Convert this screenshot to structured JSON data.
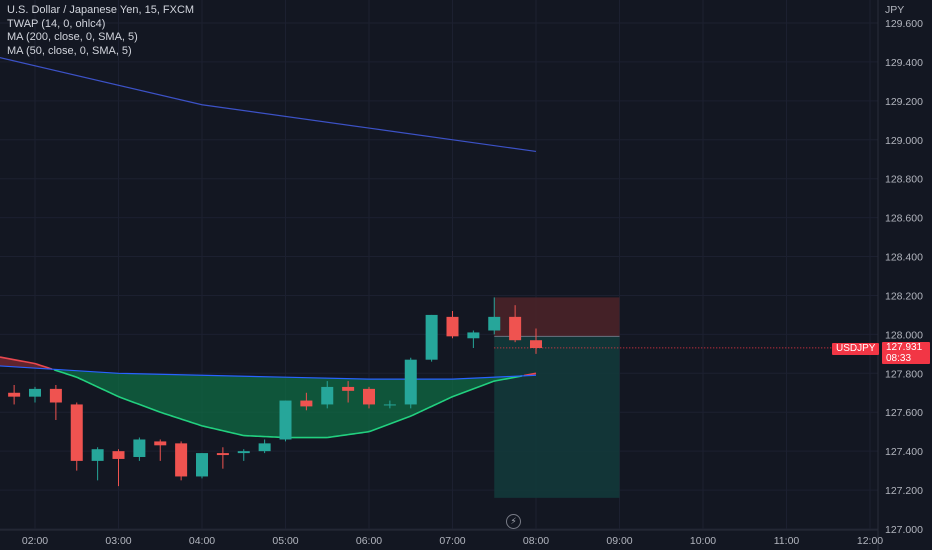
{
  "legend": {
    "symbol": "U.S. Dollar / Japanese Yen, 15, FXCM",
    "twap": "TWAP (14, 0, ohlc4)",
    "ma200": "MA (200, close, 0, SMA, 5)",
    "ma50": "MA (50, close, 0, SMA, 5)"
  },
  "price_tag": {
    "symbol": "USDJPY",
    "price": "127.931",
    "countdown": "08:33"
  },
  "icons": {
    "replay": "lightning-icon"
  },
  "colors": {
    "background": "#131722",
    "up": "#26a69a",
    "down": "#ef5350",
    "ma200": "#3c52c7",
    "ma50": "#2962ff",
    "twap_line_up": "#22d07f",
    "twap_line_down": "#e8474f",
    "twap_fill_up": "#0f6b43",
    "twap_fill_down": "#7a2a33",
    "stop_zone": "#4a2228",
    "target_zone": "#13393a"
  },
  "chart_data": {
    "type": "candlestick",
    "currency": "JPY",
    "y_ticks": [
      "129.600",
      "129.400",
      "129.200",
      "129.000",
      "128.800",
      "128.600",
      "128.400",
      "128.200",
      "128.000",
      "127.800",
      "127.600",
      "127.400",
      "127.200",
      "127.000"
    ],
    "x_ticks": [
      "02:00",
      "03:00",
      "04:00",
      "05:00",
      "06:00",
      "07:00",
      "08:00",
      "09:00",
      "10:00",
      "11:00",
      "12:00"
    ],
    "ylim": [
      127.0,
      129.65
    ],
    "candles": [
      {
        "t": "01:45",
        "o": 127.7,
        "h": 127.74,
        "l": 127.64,
        "c": 127.68
      },
      {
        "t": "02:00",
        "o": 127.68,
        "h": 127.73,
        "l": 127.65,
        "c": 127.72
      },
      {
        "t": "02:15",
        "o": 127.72,
        "h": 127.74,
        "l": 127.56,
        "c": 127.65
      },
      {
        "t": "02:30",
        "o": 127.64,
        "h": 127.65,
        "l": 127.3,
        "c": 127.35
      },
      {
        "t": "02:45",
        "o": 127.35,
        "h": 127.42,
        "l": 127.25,
        "c": 127.41
      },
      {
        "t": "03:00",
        "o": 127.4,
        "h": 127.41,
        "l": 127.22,
        "c": 127.36
      },
      {
        "t": "03:15",
        "o": 127.37,
        "h": 127.47,
        "l": 127.35,
        "c": 127.46
      },
      {
        "t": "03:30",
        "o": 127.45,
        "h": 127.46,
        "l": 127.35,
        "c": 127.43
      },
      {
        "t": "03:45",
        "o": 127.44,
        "h": 127.45,
        "l": 127.25,
        "c": 127.27
      },
      {
        "t": "04:00",
        "o": 127.27,
        "h": 127.39,
        "l": 127.26,
        "c": 127.39
      },
      {
        "t": "04:15",
        "o": 127.39,
        "h": 127.42,
        "l": 127.31,
        "c": 127.38
      },
      {
        "t": "04:30",
        "o": 127.39,
        "h": 127.41,
        "l": 127.35,
        "c": 127.4
      },
      {
        "t": "04:45",
        "o": 127.4,
        "h": 127.46,
        "l": 127.39,
        "c": 127.44
      },
      {
        "t": "05:00",
        "o": 127.46,
        "h": 127.66,
        "l": 127.45,
        "c": 127.66
      },
      {
        "t": "05:15",
        "o": 127.66,
        "h": 127.7,
        "l": 127.61,
        "c": 127.63
      },
      {
        "t": "05:30",
        "o": 127.64,
        "h": 127.76,
        "l": 127.62,
        "c": 127.73
      },
      {
        "t": "05:45",
        "o": 127.73,
        "h": 127.76,
        "l": 127.65,
        "c": 127.71
      },
      {
        "t": "06:00",
        "o": 127.72,
        "h": 127.73,
        "l": 127.62,
        "c": 127.64
      },
      {
        "t": "06:15",
        "o": 127.64,
        "h": 127.66,
        "l": 127.62,
        "c": 127.64
      },
      {
        "t": "06:30",
        "o": 127.64,
        "h": 127.88,
        "l": 127.62,
        "c": 127.87
      },
      {
        "t": "06:45",
        "o": 127.87,
        "h": 128.1,
        "l": 127.86,
        "c": 128.1
      },
      {
        "t": "07:00",
        "o": 128.09,
        "h": 128.12,
        "l": 127.98,
        "c": 127.99
      },
      {
        "t": "07:15",
        "o": 127.98,
        "h": 128.02,
        "l": 127.93,
        "c": 128.01
      },
      {
        "t": "07:30",
        "o": 128.02,
        "h": 128.19,
        "l": 128.0,
        "c": 128.09
      },
      {
        "t": "07:45",
        "o": 128.09,
        "h": 128.15,
        "l": 127.96,
        "c": 127.97
      },
      {
        "t": "08:00",
        "o": 127.97,
        "h": 128.03,
        "l": 127.9,
        "c": 127.93
      }
    ],
    "ma200": [
      {
        "t": "01:30",
        "v": 129.43
      },
      {
        "t": "04:00",
        "v": 129.18
      },
      {
        "t": "06:00",
        "v": 129.06
      },
      {
        "t": "08:00",
        "v": 128.94
      }
    ],
    "ma50": [
      {
        "t": "01:30",
        "v": 127.84
      },
      {
        "t": "03:00",
        "v": 127.8
      },
      {
        "t": "04:00",
        "v": 127.79
      },
      {
        "t": "05:00",
        "v": 127.78
      },
      {
        "t": "06:00",
        "v": 127.77
      },
      {
        "t": "07:00",
        "v": 127.77
      },
      {
        "t": "08:00",
        "v": 127.79
      }
    ],
    "twap": [
      {
        "t": "01:30",
        "v": 127.89
      },
      {
        "t": "02:00",
        "v": 127.85
      },
      {
        "t": "02:30",
        "v": 127.78
      },
      {
        "t": "03:00",
        "v": 127.68
      },
      {
        "t": "03:30",
        "v": 127.6
      },
      {
        "t": "04:00",
        "v": 127.53
      },
      {
        "t": "04:30",
        "v": 127.48
      },
      {
        "t": "05:00",
        "v": 127.47
      },
      {
        "t": "05:30",
        "v": 127.47
      },
      {
        "t": "06:00",
        "v": 127.5
      },
      {
        "t": "06:30",
        "v": 127.58
      },
      {
        "t": "07:00",
        "v": 127.68
      },
      {
        "t": "07:30",
        "v": 127.76
      },
      {
        "t": "08:00",
        "v": 127.8
      }
    ],
    "position": {
      "entry": 127.99,
      "stop": 128.19,
      "target": 127.16,
      "from": "07:30",
      "to": "09:00"
    },
    "last_price": 127.931
  }
}
